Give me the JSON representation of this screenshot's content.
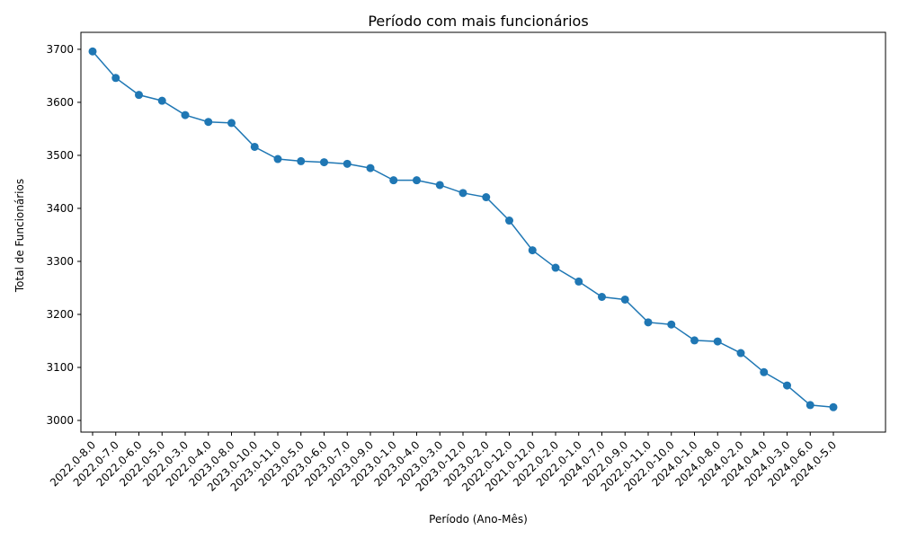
{
  "chart_data": {
    "type": "line",
    "title": "Período com mais funcionários",
    "xlabel": "Período (Ano-Mês)",
    "ylabel": "Total de Funcionários",
    "ylim": [
      2978,
      3732
    ],
    "yticks": [
      3000,
      3100,
      3200,
      3300,
      3400,
      3500,
      3600,
      3700
    ],
    "grid": false,
    "color": "#1f77b4",
    "categories": [
      "2022.0-8.0",
      "2022.0-7.0",
      "2022.0-6.0",
      "2022.0-5.0",
      "2022.0-3.0",
      "2022.0-4.0",
      "2023.0-8.0",
      "2023.0-10.0",
      "2023.0-11.0",
      "2023.0-5.0",
      "2023.0-6.0",
      "2023.0-7.0",
      "2023.0-9.0",
      "2023.0-1.0",
      "2023.0-4.0",
      "2023.0-3.0",
      "2023.0-12.0",
      "2023.0-2.0",
      "2022.0-12.0",
      "2021.0-12.0",
      "2022.0-2.0",
      "2022.0-1.0",
      "2024.0-7.0",
      "2022.0-9.0",
      "2022.0-11.0",
      "2022.0-10.0",
      "2024.0-1.0",
      "2024.0-8.0",
      "2024.0-2.0",
      "2024.0-4.0",
      "2024.0-3.0",
      "2024.0-6.0",
      "2024.0-5.0"
    ],
    "values": [
      3696,
      3646,
      3614,
      3603,
      3576,
      3563,
      3561,
      3516,
      3493,
      3489,
      3487,
      3484,
      3476,
      3453,
      3453,
      3444,
      3429,
      3421,
      3377,
      3321,
      3288,
      3262,
      3233,
      3228,
      3185,
      3181,
      3151,
      3149,
      3127,
      3091,
      3066,
      3029,
      3025
    ]
  }
}
